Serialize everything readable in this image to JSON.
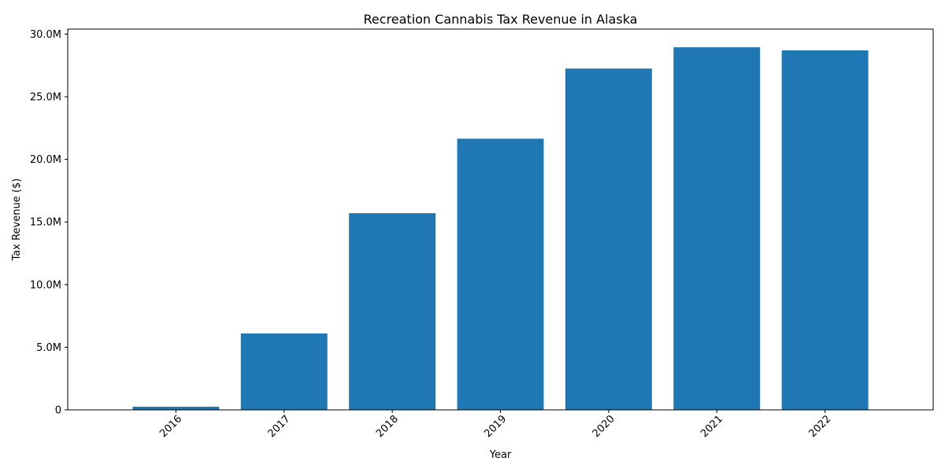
{
  "chart_data": {
    "type": "bar",
    "title": "Recreation Cannabis Tax Revenue in Alaska",
    "xlabel": "Year",
    "ylabel": "Tax Revenue ($)",
    "categories": [
      "2016",
      "2017",
      "2018",
      "2019",
      "2020",
      "2021",
      "2022"
    ],
    "values": [
      250000,
      6100000,
      15700000,
      21650000,
      27250000,
      28950000,
      28700000
    ],
    "ylim": [
      0,
      30400000
    ],
    "yticks": [
      0,
      5000000,
      10000000,
      15000000,
      20000000,
      25000000,
      30000000
    ],
    "ytick_labels": [
      "0",
      "5.0M",
      "10.0M",
      "15.0M",
      "20.0M",
      "25.0M",
      "30.0M"
    ],
    "xtick_rotation_deg": 45,
    "grid": false,
    "legend": "none",
    "bar_color": "#1f77b4"
  }
}
